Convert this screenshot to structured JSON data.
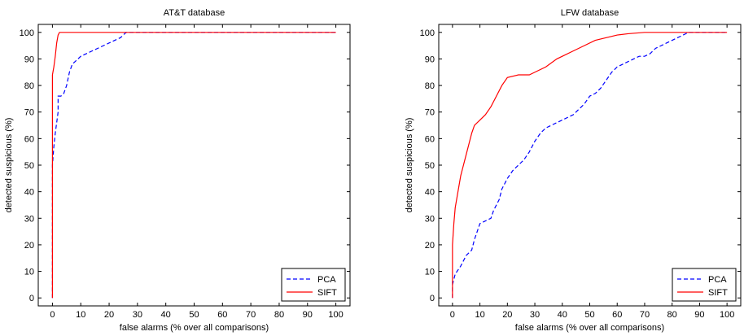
{
  "chart_data": [
    {
      "type": "line",
      "title": "AT&T database",
      "xlabel": "false alarms (% over all comparisons)",
      "ylabel": "detected suspicious (%)",
      "xlim": [
        -5,
        105
      ],
      "ylim": [
        -3,
        103
      ],
      "xticks": [
        0,
        10,
        20,
        30,
        40,
        50,
        60,
        70,
        80,
        90,
        100
      ],
      "yticks": [
        0,
        10,
        20,
        30,
        40,
        50,
        60,
        70,
        80,
        90,
        100
      ],
      "grid": false,
      "legend": "bottom-right",
      "series": [
        {
          "name": "PCA",
          "color": "#0000ff",
          "dash": "dashed",
          "points": [
            [
              0,
              0
            ],
            [
              0,
              50
            ],
            [
              0.5,
              57
            ],
            [
              1,
              62
            ],
            [
              1.5,
              66
            ],
            [
              2,
              70
            ],
            [
              2,
              76
            ],
            [
              3,
              76
            ],
            [
              4,
              77
            ],
            [
              5,
              80
            ],
            [
              6,
              85
            ],
            [
              7,
              88
            ],
            [
              8,
              89
            ],
            [
              10,
              91
            ],
            [
              12,
              92
            ],
            [
              14,
              93
            ],
            [
              16,
              94
            ],
            [
              18,
              95
            ],
            [
              20,
              96
            ],
            [
              22,
              97
            ],
            [
              24,
              98
            ],
            [
              25,
              99
            ],
            [
              26,
              100
            ],
            [
              100,
              100
            ]
          ]
        },
        {
          "name": "SIFT",
          "color": "#ff0000",
          "dash": "solid",
          "points": [
            [
              0,
              0
            ],
            [
              0,
              84
            ],
            [
              0.5,
              87
            ],
            [
              1,
              91
            ],
            [
              1.5,
              96
            ],
            [
              2,
              99
            ],
            [
              2.5,
              100
            ],
            [
              100,
              100
            ]
          ]
        }
      ]
    },
    {
      "type": "line",
      "title": "LFW database",
      "xlabel": "false alarms (% over all comparisons)",
      "ylabel": "detected suspicious (%)",
      "xlim": [
        -5,
        105
      ],
      "ylim": [
        -3,
        103
      ],
      "xticks": [
        0,
        10,
        20,
        30,
        40,
        50,
        60,
        70,
        80,
        90,
        100
      ],
      "yticks": [
        0,
        10,
        20,
        30,
        40,
        50,
        60,
        70,
        80,
        90,
        100
      ],
      "grid": false,
      "legend": "bottom-right",
      "series": [
        {
          "name": "PCA",
          "color": "#0000ff",
          "dash": "dashed",
          "points": [
            [
              0,
              0
            ],
            [
              0,
              5
            ],
            [
              1,
              9
            ],
            [
              3,
              12
            ],
            [
              5,
              16
            ],
            [
              7,
              18
            ],
            [
              8,
              22
            ],
            [
              10,
              28
            ],
            [
              12,
              29
            ],
            [
              14,
              30
            ],
            [
              15,
              33
            ],
            [
              17,
              37
            ],
            [
              18,
              41
            ],
            [
              20,
              45
            ],
            [
              22,
              48
            ],
            [
              24,
              50
            ],
            [
              26,
              52
            ],
            [
              28,
              55
            ],
            [
              30,
              59
            ],
            [
              32,
              62
            ],
            [
              34,
              64
            ],
            [
              36,
              65
            ],
            [
              38,
              66
            ],
            [
              40,
              67
            ],
            [
              42,
              68
            ],
            [
              44,
              69
            ],
            [
              46,
              71
            ],
            [
              48,
              73
            ],
            [
              50,
              76
            ],
            [
              52,
              77
            ],
            [
              54,
              79
            ],
            [
              56,
              82
            ],
            [
              58,
              85
            ],
            [
              60,
              87
            ],
            [
              62,
              88
            ],
            [
              64,
              89
            ],
            [
              66,
              90
            ],
            [
              68,
              91
            ],
            [
              70,
              91
            ],
            [
              72,
              92
            ],
            [
              74,
              94
            ],
            [
              76,
              95
            ],
            [
              78,
              96
            ],
            [
              80,
              97
            ],
            [
              82,
              98
            ],
            [
              84,
              99
            ],
            [
              86,
              100
            ],
            [
              100,
              100
            ]
          ]
        },
        {
          "name": "SIFT",
          "color": "#ff0000",
          "dash": "solid",
          "points": [
            [
              0,
              0
            ],
            [
              0,
              20
            ],
            [
              0.5,
              28
            ],
            [
              1,
              34
            ],
            [
              2,
              40
            ],
            [
              3,
              46
            ],
            [
              4,
              50
            ],
            [
              5,
              54
            ],
            [
              6,
              58
            ],
            [
              7,
              62
            ],
            [
              8,
              65
            ],
            [
              10,
              67
            ],
            [
              12,
              69
            ],
            [
              14,
              72
            ],
            [
              16,
              76
            ],
            [
              18,
              80
            ],
            [
              20,
              83
            ],
            [
              24,
              84
            ],
            [
              28,
              84
            ],
            [
              30,
              85
            ],
            [
              34,
              87
            ],
            [
              38,
              90
            ],
            [
              40,
              91
            ],
            [
              44,
              93
            ],
            [
              48,
              95
            ],
            [
              52,
              97
            ],
            [
              56,
              98
            ],
            [
              60,
              99
            ],
            [
              64,
              99.5
            ],
            [
              70,
              100
            ],
            [
              100,
              100
            ]
          ]
        }
      ]
    }
  ]
}
